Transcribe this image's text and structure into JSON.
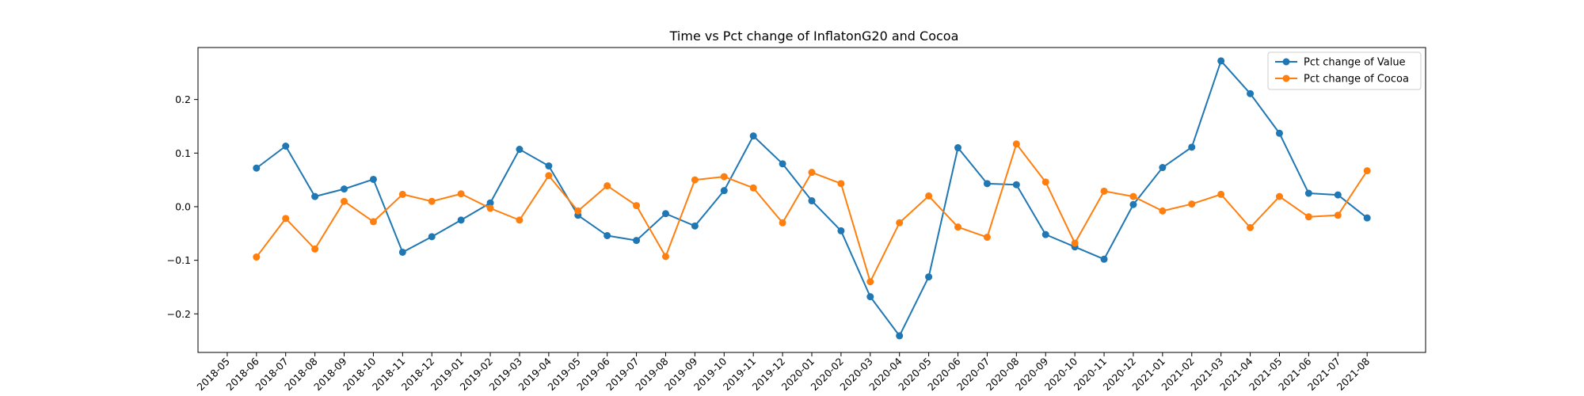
{
  "chart_data": {
    "type": "line",
    "title": "Time vs Pct change of InflatonG20 and Cocoa",
    "xlabel": "",
    "ylabel": "",
    "x": [
      "2018-06",
      "2018-07",
      "2018-08",
      "2018-09",
      "2018-10",
      "2018-11",
      "2018-12",
      "2019-01",
      "2019-02",
      "2019-03",
      "2019-04",
      "2019-05",
      "2019-06",
      "2019-07",
      "2019-08",
      "2019-09",
      "2019-10",
      "2019-11",
      "2019-12",
      "2020-01",
      "2020-02",
      "2020-03",
      "2020-04",
      "2020-05",
      "2020-06",
      "2020-07",
      "2020-08",
      "2020-09",
      "2020-10",
      "2020-11",
      "2020-12",
      "2021-01",
      "2021-02",
      "2021-03",
      "2021-04",
      "2021-05",
      "2021-06",
      "2021-07",
      "2021-08"
    ],
    "xticks": [
      "2018-05",
      "2018-06",
      "2018-07",
      "2018-08",
      "2018-09",
      "2018-10",
      "2018-11",
      "2018-12",
      "2019-01",
      "2019-02",
      "2019-03",
      "2019-04",
      "2019-05",
      "2019-06",
      "2019-07",
      "2019-08",
      "2019-09",
      "2019-10",
      "2019-11",
      "2019-12",
      "2020-01",
      "2020-02",
      "2020-03",
      "2020-04",
      "2020-05",
      "2020-06",
      "2020-07",
      "2020-08",
      "2020-09",
      "2020-10",
      "2020-11",
      "2020-12",
      "2021-01",
      "2021-02",
      "2021-03",
      "2021-04",
      "2021-05",
      "2021-06",
      "2021-07",
      "2021-08"
    ],
    "xlim": [
      "2018-04",
      "2021-10"
    ],
    "yticks": [
      -0.2,
      -0.1,
      0.0,
      0.1,
      0.2
    ],
    "ytick_labels": [
      "−0.2",
      "−0.1",
      "0.0",
      "0.1",
      "0.2"
    ],
    "ylim": [
      -0.272,
      0.297
    ],
    "grid": false,
    "legend_position": "top-right",
    "series": [
      {
        "name": "Pct change of Value",
        "color": "#1f77b4",
        "values": [
          0.072,
          0.113,
          0.019,
          0.033,
          0.051,
          -0.085,
          -0.056,
          -0.025,
          0.007,
          0.107,
          0.076,
          -0.016,
          -0.054,
          -0.063,
          -0.013,
          -0.036,
          0.03,
          0.132,
          0.08,
          0.011,
          -0.045,
          -0.168,
          -0.241,
          -0.131,
          0.11,
          0.043,
          0.041,
          -0.052,
          -0.075,
          -0.098,
          0.004,
          0.073,
          0.111,
          0.272,
          0.211,
          0.137,
          0.025,
          0.022,
          -0.021
        ]
      },
      {
        "name": "Pct change of Cocoa",
        "color": "#ff7f0e",
        "values": [
          -0.094,
          -0.022,
          -0.079,
          0.01,
          -0.028,
          0.023,
          0.01,
          0.024,
          -0.003,
          -0.025,
          0.058,
          -0.008,
          0.039,
          0.002,
          -0.093,
          0.05,
          0.056,
          0.035,
          -0.03,
          0.064,
          0.043,
          -0.14,
          -0.03,
          0.02,
          -0.038,
          -0.057,
          0.117,
          0.046,
          -0.068,
          0.029,
          0.019,
          -0.008,
          0.005,
          0.023,
          -0.039,
          0.019,
          -0.019,
          -0.016,
          0.067
        ]
      }
    ]
  }
}
